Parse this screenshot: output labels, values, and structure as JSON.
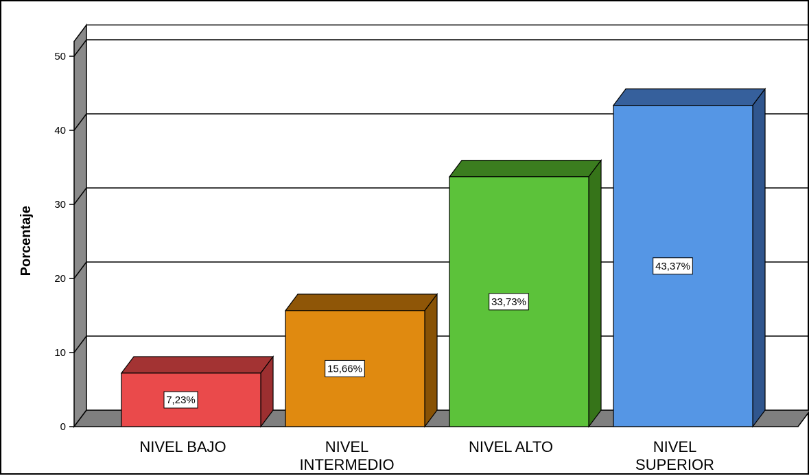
{
  "chart_data": {
    "type": "bar",
    "title": "",
    "xlabel": "",
    "ylabel": "Porcentaje",
    "ylim": [
      0,
      52
    ],
    "yticks": [
      0,
      10,
      20,
      30,
      40,
      50
    ],
    "three_d": true,
    "grid": true,
    "legend": "none",
    "categories": [
      [
        "NIVEL BAJO"
      ],
      [
        "NIVEL",
        "INTERMEDIO"
      ],
      [
        "NIVEL ALTO"
      ],
      [
        "NIVEL",
        "SUPERIOR"
      ]
    ],
    "values": [
      7.23,
      15.66,
      33.73,
      43.37
    ],
    "value_labels": [
      "7,23%",
      "15,66%",
      "33,73%",
      "43,37%"
    ],
    "colors": {
      "bars_front": [
        "#ea4a4b",
        "#e08a10",
        "#5cc23a",
        "#5596e5"
      ],
      "bars_top": [
        "#a33333",
        "#8f5607",
        "#3b7d1f",
        "#36609c"
      ],
      "bars_side": [
        "#9c2f30",
        "#885205",
        "#367419",
        "#30568e"
      ],
      "wall": "#8a8a8a",
      "floor": "#7f7f7f",
      "gridline": "#000000"
    }
  }
}
